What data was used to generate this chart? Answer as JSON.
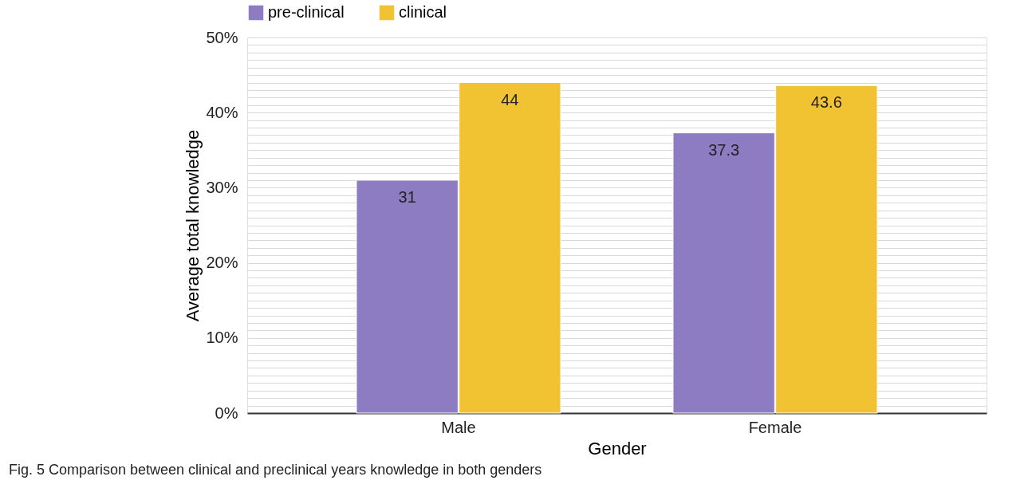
{
  "chart_data": {
    "type": "bar",
    "xlabel": "Gender",
    "ylabel": "Average total knowledge",
    "categories": [
      "Male",
      "Female"
    ],
    "series": [
      {
        "name": "pre-clinical",
        "color": "#8e7cc3",
        "values": [
          31,
          37.3
        ]
      },
      {
        "name": "clinical",
        "color": "#f1c232",
        "values": [
          44,
          43.6
        ]
      }
    ],
    "ylim": [
      0,
      50
    ],
    "yticks": [
      {
        "value": 0,
        "label": "0%"
      },
      {
        "value": 1,
        "label": null
      },
      {
        "value": 2,
        "label": null
      },
      {
        "value": 3,
        "label": null
      },
      {
        "value": 4,
        "label": null
      },
      {
        "value": 5,
        "label": null
      },
      {
        "value": 6,
        "label": null
      },
      {
        "value": 7,
        "label": null
      },
      {
        "value": 8,
        "label": null
      },
      {
        "value": 9,
        "label": null
      },
      {
        "value": 10,
        "label": "10%"
      },
      {
        "value": 11,
        "label": null
      },
      {
        "value": 12,
        "label": null
      },
      {
        "value": 13,
        "label": null
      },
      {
        "value": 14,
        "label": null
      },
      {
        "value": 15,
        "label": null
      },
      {
        "value": 16,
        "label": null
      },
      {
        "value": 17,
        "label": null
      },
      {
        "value": 18,
        "label": null
      },
      {
        "value": 19,
        "label": null
      },
      {
        "value": 20,
        "label": "20%"
      },
      {
        "value": 21,
        "label": null
      },
      {
        "value": 22,
        "label": null
      },
      {
        "value": 23,
        "label": null
      },
      {
        "value": 24,
        "label": null
      },
      {
        "value": 25,
        "label": null
      },
      {
        "value": 26,
        "label": null
      },
      {
        "value": 27,
        "label": null
      },
      {
        "value": 28,
        "label": null
      },
      {
        "value": 29,
        "label": null
      },
      {
        "value": 30,
        "label": "30%"
      },
      {
        "value": 31,
        "label": null
      },
      {
        "value": 32,
        "label": null
      },
      {
        "value": 33,
        "label": null
      },
      {
        "value": 34,
        "label": null
      },
      {
        "value": 35,
        "label": null
      },
      {
        "value": 36,
        "label": null
      },
      {
        "value": 37,
        "label": null
      },
      {
        "value": 38,
        "label": null
      },
      {
        "value": 39,
        "label": null
      },
      {
        "value": 40,
        "label": "40%"
      },
      {
        "value": 41,
        "label": null
      },
      {
        "value": 42,
        "label": null
      },
      {
        "value": 43,
        "label": null
      },
      {
        "value": 44,
        "label": null
      },
      {
        "value": 45,
        "label": null
      },
      {
        "value": 46,
        "label": null
      },
      {
        "value": 47,
        "label": null
      },
      {
        "value": 48,
        "label": null
      },
      {
        "value": 49,
        "label": null
      },
      {
        "value": 50,
        "label": "50%"
      }
    ],
    "grid": true,
    "legend": "top",
    "data_labels": true,
    "annotations": [
      "Fig. 5  Comparison between clinical and preclinical years knowledge in both genders"
    ]
  }
}
